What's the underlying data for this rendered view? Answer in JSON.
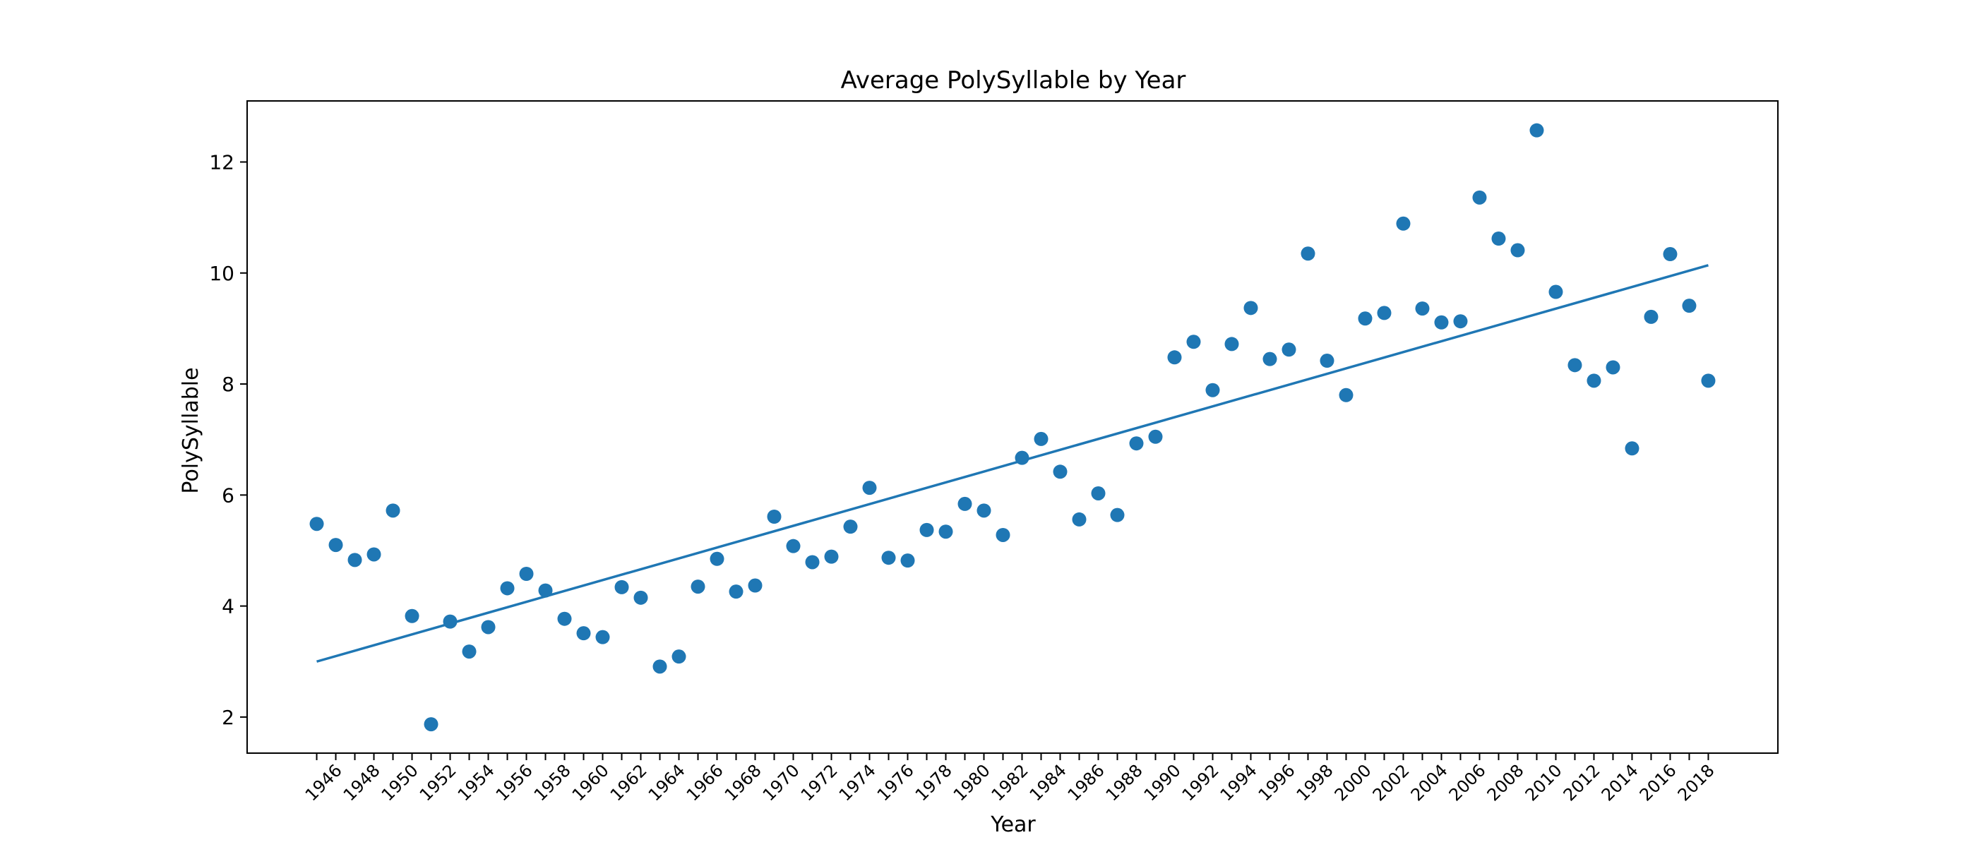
{
  "chart_data": {
    "type": "scatter",
    "title": "Average PolySyllable by Year",
    "xlabel": "Year",
    "ylabel": "PolySyllable",
    "xlim": [
      1945,
      2018
    ],
    "ylim": [
      1.35,
      13.1
    ],
    "yticks": [
      2,
      4,
      6,
      8,
      10,
      12
    ],
    "xtick_labels": [
      "1946",
      "1948",
      "1950",
      "1952",
      "1954",
      "1956",
      "1958",
      "1960",
      "1962",
      "1964",
      "1966",
      "1968",
      "1970",
      "1972",
      "1974",
      "1976",
      "1978",
      "1980",
      "1982",
      "1984",
      "1986",
      "1988",
      "1990",
      "1992",
      "1994",
      "1996",
      "1998",
      "2000",
      "2002",
      "2004",
      "2006",
      "2008",
      "2010",
      "2012",
      "2014",
      "2016",
      "2018"
    ],
    "grid": false,
    "legend": false,
    "color": "#1f77b4",
    "series": [
      {
        "type": "scatter",
        "x": [
          1945,
          1946,
          1947,
          1948,
          1949,
          1950,
          1951,
          1952,
          1953,
          1954,
          1955,
          1956,
          1957,
          1958,
          1959,
          1960,
          1961,
          1962,
          1963,
          1964,
          1965,
          1966,
          1967,
          1968,
          1969,
          1970,
          1971,
          1972,
          1973,
          1974,
          1975,
          1976,
          1977,
          1978,
          1979,
          1980,
          1981,
          1982,
          1983,
          1984,
          1985,
          1986,
          1987,
          1988,
          1989,
          1990,
          1991,
          1992,
          1993,
          1994,
          1995,
          1996,
          1997,
          1998,
          1999,
          2000,
          2001,
          2002,
          2003,
          2004,
          2005,
          2006,
          2007,
          2008,
          2009,
          2010,
          2011,
          2012,
          2013,
          2014,
          2015,
          2016,
          2017,
          2018
        ],
        "y": [
          5.48,
          5.1,
          4.83,
          4.93,
          5.72,
          3.82,
          1.87,
          3.72,
          3.18,
          3.62,
          4.32,
          4.58,
          4.28,
          3.77,
          3.51,
          3.44,
          4.34,
          4.15,
          2.91,
          3.09,
          4.35,
          4.85,
          4.26,
          4.37,
          5.61,
          5.08,
          4.79,
          4.89,
          5.43,
          6.13,
          4.87,
          4.82,
          5.37,
          5.34,
          5.84,
          5.72,
          5.28,
          6.67,
          7.01,
          6.42,
          5.56,
          6.03,
          5.64,
          6.93,
          7.05,
          8.48,
          8.76,
          7.89,
          8.72,
          9.37,
          8.45,
          8.62,
          10.35,
          8.42,
          7.8,
          9.18,
          9.28,
          10.89,
          9.36,
          9.11,
          9.13,
          11.36,
          10.62,
          10.41,
          12.57,
          9.66,
          8.34,
          8.06,
          8.3,
          6.84,
          9.21,
          10.34,
          9.41,
          8.06
        ]
      },
      {
        "type": "line",
        "x": [
          1945,
          2018
        ],
        "y": [
          3.0,
          10.14
        ]
      }
    ]
  }
}
